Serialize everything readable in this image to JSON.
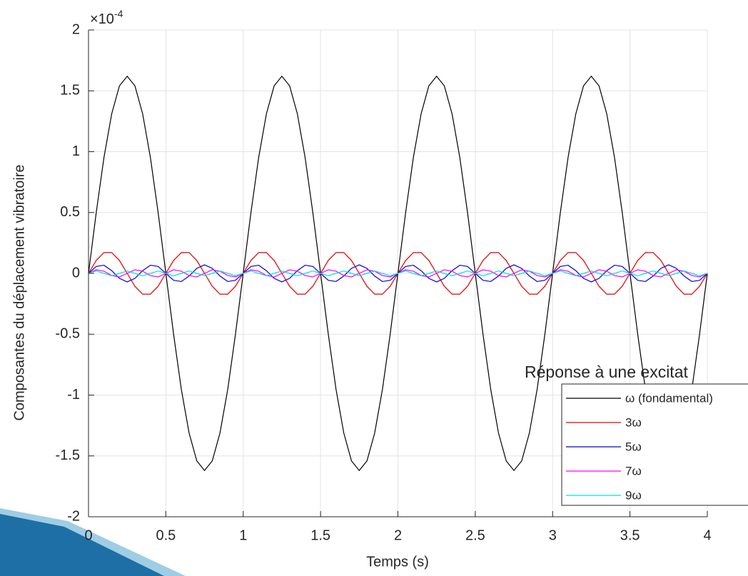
{
  "chart_data": {
    "type": "line",
    "y_multiplier": {
      "base": "×10",
      "exponent": "-4"
    },
    "xlabel": "Temps (s)",
    "ylabel": "Composantes du déplacement vibratoire",
    "legend_title": "Réponse à une excitat",
    "legend": "bottom-right",
    "grid": true,
    "xlim": [
      0,
      4
    ],
    "xticks": [
      0,
      0.5,
      1,
      1.5,
      2,
      2.5,
      3,
      3.5,
      4
    ],
    "ylim": [
      -2,
      2
    ],
    "yticks": [
      -2,
      -1.5,
      -1,
      -0.5,
      0,
      0.5,
      1,
      1.5,
      2
    ],
    "x": [
      0,
      0.05,
      0.1,
      0.15,
      0.2,
      0.25,
      0.3,
      0.35,
      0.4,
      0.45,
      0.5,
      0.55,
      0.6,
      0.65,
      0.7,
      0.75,
      0.8,
      0.85,
      0.9,
      0.95,
      1,
      1.05,
      1.1,
      1.15,
      1.2,
      1.25,
      1.3,
      1.35,
      1.4,
      1.45,
      1.5,
      1.55,
      1.6,
      1.65,
      1.7,
      1.75,
      1.8,
      1.85,
      1.9,
      1.95,
      2,
      2.05,
      2.1,
      2.15,
      2.2,
      2.25,
      2.3,
      2.35,
      2.4,
      2.45,
      2.5,
      2.55,
      2.6,
      2.65,
      2.7,
      2.75,
      2.8,
      2.85,
      2.9,
      2.95,
      3,
      3.05,
      3.1,
      3.15,
      3.2,
      3.25,
      3.3,
      3.35,
      3.4,
      3.45,
      3.5,
      3.55,
      3.6,
      3.65,
      3.7,
      3.75,
      3.8,
      3.85,
      3.9,
      3.95,
      4
    ],
    "series": [
      {
        "name": "ω (fondamental)",
        "color": "#000000",
        "values": [
          0,
          0.5,
          0.953,
          1.311,
          1.541,
          1.62,
          1.541,
          1.311,
          0.953,
          0.5,
          0,
          -0.5,
          -0.953,
          -1.311,
          -1.541,
          -1.62,
          -1.541,
          -1.311,
          -0.953,
          -0.5,
          0,
          0.5,
          0.953,
          1.311,
          1.541,
          1.62,
          1.541,
          1.311,
          0.953,
          0.5,
          0,
          -0.5,
          -0.953,
          -1.311,
          -1.541,
          -1.62,
          -1.541,
          -1.311,
          -0.953,
          -0.5,
          0,
          0.5,
          0.953,
          1.311,
          1.541,
          1.62,
          1.541,
          1.311,
          0.953,
          0.5,
          0,
          -0.5,
          -0.953,
          -1.311,
          -1.541,
          -1.62,
          -1.541,
          -1.311,
          -0.953,
          -0.5,
          0,
          0.5,
          0.953,
          1.311,
          1.541,
          1.62,
          1.541,
          1.311,
          0.953,
          0.5,
          0,
          -0.5,
          -0.953,
          -1.311,
          -1.541,
          -1.62,
          -1.541,
          -1.311,
          -0.953,
          -0.5,
          0
        ]
      },
      {
        "name": "3ω",
        "color": "#e00000",
        "values": [
          0,
          0.106,
          0.171,
          0.171,
          0.106,
          0,
          -0.106,
          -0.171,
          -0.171,
          -0.106,
          0,
          0.106,
          0.171,
          0.171,
          0.106,
          0,
          -0.106,
          -0.171,
          -0.171,
          -0.106,
          0,
          0.106,
          0.171,
          0.171,
          0.106,
          0,
          -0.106,
          -0.171,
          -0.171,
          -0.106,
          0,
          0.106,
          0.171,
          0.171,
          0.106,
          0,
          -0.106,
          -0.171,
          -0.171,
          -0.106,
          0,
          0.106,
          0.171,
          0.171,
          0.106,
          0,
          -0.106,
          -0.171,
          -0.171,
          -0.106,
          0,
          0.106,
          0.171,
          0.171,
          0.106,
          0,
          -0.106,
          -0.171,
          -0.171,
          -0.106,
          0,
          0.106,
          0.171,
          0.171,
          0.106,
          0,
          -0.106,
          -0.171,
          -0.171,
          -0.106,
          0,
          0.106,
          0.171,
          0.171,
          0.106,
          0,
          -0.106,
          -0.171,
          -0.171,
          -0.106,
          0
        ]
      },
      {
        "name": "5ω",
        "color": "#0000e0",
        "values": [
          0,
          0.057,
          0.067,
          0.022,
          -0.041,
          -0.07,
          -0.041,
          0.022,
          0.067,
          0.057,
          0,
          -0.057,
          -0.067,
          -0.022,
          0.041,
          0.07,
          0.041,
          -0.022,
          -0.067,
          -0.057,
          0,
          0.057,
          0.067,
          0.022,
          -0.041,
          -0.07,
          -0.041,
          0.022,
          0.067,
          0.057,
          0,
          -0.057,
          -0.067,
          -0.022,
          0.041,
          0.07,
          0.041,
          -0.022,
          -0.067,
          -0.057,
          0,
          0.057,
          0.067,
          0.022,
          -0.041,
          -0.07,
          -0.041,
          0.022,
          0.067,
          0.057,
          0,
          -0.057,
          -0.067,
          -0.022,
          0.041,
          0.07,
          0.041,
          -0.022,
          -0.067,
          -0.057,
          0,
          0.057,
          0.067,
          0.022,
          -0.041,
          -0.07,
          -0.041,
          0.022,
          0.067,
          0.057,
          0,
          -0.057,
          -0.067,
          -0.022,
          0.041,
          0.07,
          0.041,
          -0.022,
          -0.067,
          -0.057,
          0
        ]
      },
      {
        "name": "7ω",
        "color": "#ff00ff",
        "values": [
          0,
          0.029,
          0.018,
          -0.018,
          -0.029,
          0,
          0.029,
          0.018,
          -0.018,
          -0.029,
          0,
          0.029,
          0.018,
          -0.018,
          -0.029,
          0,
          0.029,
          0.018,
          -0.018,
          -0.029,
          0,
          0.029,
          0.018,
          -0.018,
          -0.029,
          0,
          0.029,
          0.018,
          -0.018,
          -0.029,
          0,
          0.029,
          0.018,
          -0.018,
          -0.029,
          0,
          0.029,
          0.018,
          -0.018,
          -0.029,
          0,
          0.029,
          0.018,
          -0.018,
          -0.029,
          0,
          0.029,
          0.018,
          -0.018,
          -0.029,
          0,
          0.029,
          0.018,
          -0.018,
          -0.029,
          0,
          0.029,
          0.018,
          -0.018,
          -0.029,
          0,
          0.029,
          0.018,
          -0.018,
          -0.029,
          0,
          0.029,
          0.018,
          -0.018,
          -0.029,
          0,
          0.029,
          0.018,
          -0.018,
          -0.029,
          0,
          0.029,
          0.018,
          -0.018,
          -0.029,
          0
        ]
      },
      {
        "name": "9ω",
        "color": "#00e0e0",
        "values": [
          0,
          0.02,
          0,
          -0.02,
          0,
          0.02,
          0,
          -0.02,
          0,
          0.02,
          0,
          -0.02,
          0,
          0.02,
          0,
          -0.02,
          0,
          0.02,
          0,
          -0.02,
          0,
          0.02,
          0,
          -0.02,
          0,
          0.02,
          0,
          -0.02,
          0,
          0.02,
          0,
          -0.02,
          0,
          0.02,
          0,
          -0.02,
          0,
          0.02,
          0,
          -0.02,
          0,
          0.02,
          0,
          -0.02,
          0,
          0.02,
          0,
          -0.02,
          0,
          0.02,
          0,
          -0.02,
          0,
          0.02,
          0,
          -0.02,
          0,
          0.02,
          0,
          -0.02,
          0,
          0.02,
          0,
          -0.02,
          0,
          0.02,
          0,
          -0.02,
          0,
          0.02,
          0,
          -0.02,
          0,
          0.02,
          0,
          -0.02,
          0,
          0.02,
          0,
          -0.02,
          0
        ]
      }
    ]
  }
}
